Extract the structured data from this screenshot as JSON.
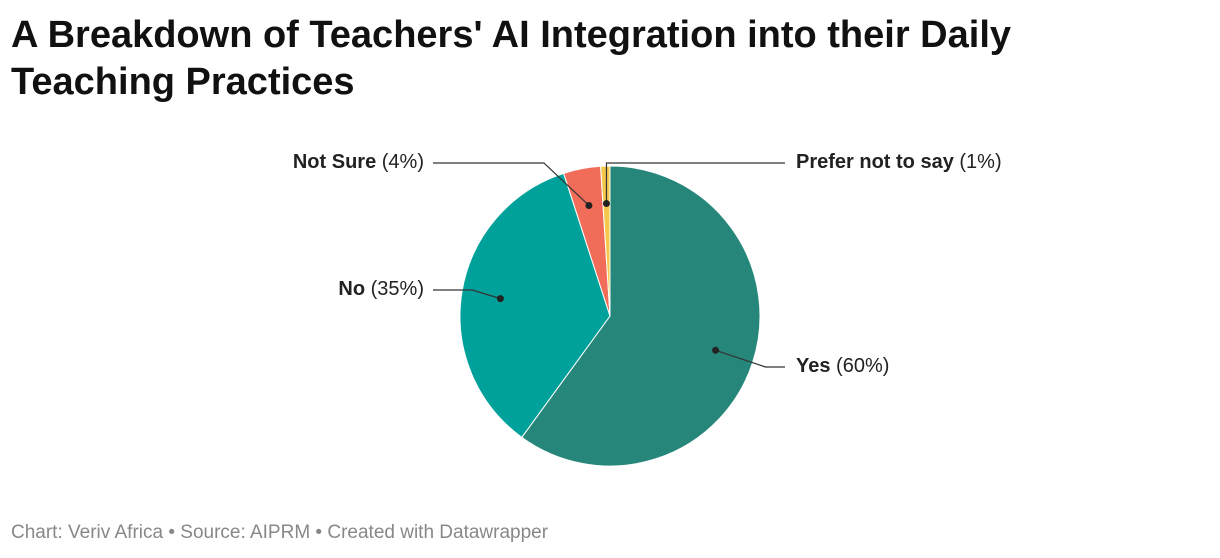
{
  "chart_data": {
    "type": "pie",
    "title": "A Breakdown of Teachers' AI Integration into their Daily Teaching Practices",
    "categories": [
      "Yes",
      "No",
      "Not Sure",
      "Prefer not to say"
    ],
    "values": [
      60,
      35,
      4,
      1
    ],
    "value_labels": [
      "(60%)",
      "(35%)",
      "(4%)",
      "(1%)"
    ],
    "colors": [
      "#26867a",
      "#00a19a",
      "#f26c5a",
      "#f5c84c"
    ],
    "footer": "Chart: Veriv Africa • Source: AIPRM • Created with Datawrapper"
  }
}
